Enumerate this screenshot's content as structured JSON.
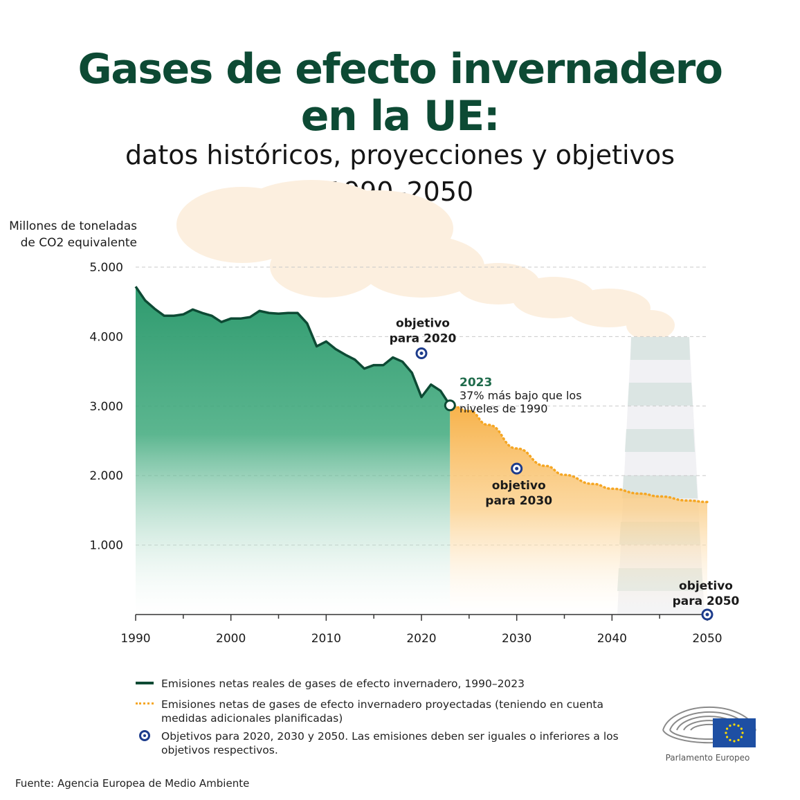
{
  "title_line1": "Gases de efecto invernadero",
  "title_line2": "en la UE:",
  "subtitle": "datos históricos, proyecciones y objetivos",
  "years_label": "1990–2050",
  "ylabel_line1": "Millones de toneladas",
  "ylabel_line2": "de CO2 equivalente",
  "colors": {
    "title": "#0d4a34",
    "actual": "#0d4a34",
    "actual_fill": "#2e9a6e",
    "projected": "#f5a623",
    "target": "#1d3c8c"
  },
  "chart_data": {
    "type": "area",
    "ylim": [
      0,
      5000
    ],
    "xlim": [
      1990,
      2050
    ],
    "yticks": [
      {
        "value": 1000,
        "label": "1.000"
      },
      {
        "value": 2000,
        "label": "2.000"
      },
      {
        "value": 3000,
        "label": "3.000"
      },
      {
        "value": 4000,
        "label": "4.000"
      },
      {
        "value": 5000,
        "label": "5.000"
      }
    ],
    "xticks": [
      {
        "value": 1990,
        "label": "1990"
      },
      {
        "value": 2000,
        "label": "2000"
      },
      {
        "value": 2010,
        "label": "2010"
      },
      {
        "value": 2020,
        "label": "2020"
      },
      {
        "value": 2030,
        "label": "2030"
      },
      {
        "value": 2040,
        "label": "2040"
      },
      {
        "value": 2050,
        "label": "2050"
      }
    ],
    "grid": true,
    "series": [
      {
        "name": "Emisiones netas reales de gases de efecto invernadero, 1990–2023",
        "style": "solid",
        "x": [
          1990,
          1991,
          1992,
          1993,
          1994,
          1995,
          1996,
          1997,
          1998,
          1999,
          2000,
          2001,
          2002,
          2003,
          2004,
          2005,
          2006,
          2007,
          2008,
          2009,
          2010,
          2011,
          2012,
          2013,
          2014,
          2015,
          2016,
          2017,
          2018,
          2019,
          2020,
          2021,
          2022,
          2023
        ],
        "y": [
          4720,
          4520,
          4400,
          4300,
          4300,
          4320,
          4390,
          4340,
          4300,
          4210,
          4260,
          4260,
          4280,
          4370,
          4340,
          4330,
          4340,
          4340,
          4190,
          3860,
          3930,
          3820,
          3740,
          3670,
          3540,
          3590,
          3590,
          3700,
          3640,
          3480,
          3130,
          3310,
          3220,
          3010
        ]
      },
      {
        "name": "Emisiones netas de gases de efecto invernadero proyectadas (teniendo en cuenta medidas adicionales planificadas)",
        "style": "dotted",
        "x": [
          2023,
          2025,
          2027,
          2030,
          2033,
          2035,
          2038,
          2040,
          2043,
          2045,
          2048,
          2050
        ],
        "y": [
          3010,
          2930,
          2730,
          2390,
          2140,
          2010,
          1880,
          1810,
          1740,
          1700,
          1640,
          1620
        ]
      }
    ],
    "targets": [
      {
        "x": 2020,
        "y": 3760,
        "label_line1": "objetivo",
        "label_line2": "para 2020"
      },
      {
        "x": 2030,
        "y": 2100,
        "label_line1": "objetivo",
        "label_line2": "para 2030"
      },
      {
        "x": 2050,
        "y": 0,
        "label_line1": "objetivo",
        "label_line2": "para 2050"
      }
    ],
    "annotation": {
      "x": 2023,
      "y": 3010,
      "year": "2023",
      "text_line1": "37%   más   bajo   que   los",
      "text_line2": "niveles de 1990"
    }
  },
  "legend": {
    "actual": "Emisiones netas reales de gases de efecto invernadero, 1990–2023",
    "projected": "Emisiones netas de gases de efecto invernadero proyectadas (teniendo en cuenta medidas adicionales planificadas)",
    "targets": "Objetivos para 2020, 2030 y 2050. Las emisiones deben ser iguales o inferiores a los objetivos respectivos."
  },
  "source": "Fuente: Agencia Europea de Medio Ambiente",
  "logo_text": "Parlamento Europeo"
}
